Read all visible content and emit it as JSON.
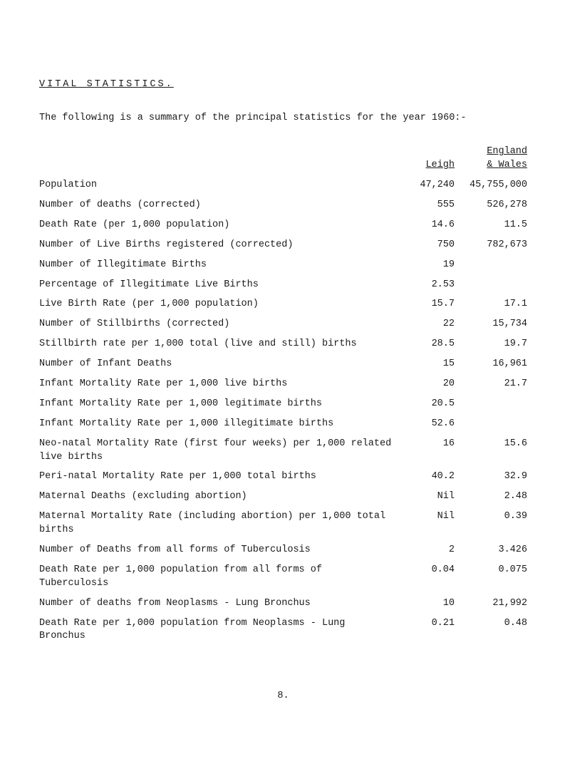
{
  "title": "VITAL STATISTICS.",
  "intro": "The following is a summary of the principal statistics for the year 1960:-",
  "headers": {
    "leigh": "Leigh",
    "england": "England\n& Wales"
  },
  "rows": [
    {
      "label": "Population",
      "leigh": "47,240",
      "ew": "45,755,000"
    },
    {
      "label": "Number of deaths (corrected)",
      "leigh": "555",
      "ew": "526,278"
    },
    {
      "label": "Death Rate (per 1,000 population)",
      "leigh": "14.6",
      "ew": "11.5"
    },
    {
      "label": "Number of Live Births registered (corrected)",
      "leigh": "750",
      "ew": "782,673"
    },
    {
      "label": "Number of Illegitimate Births",
      "leigh": "19",
      "ew": ""
    },
    {
      "label": "Percentage of Illegitimate Live Births",
      "leigh": "2.53",
      "ew": ""
    },
    {
      "label": "Live Birth Rate (per 1,000 population)",
      "leigh": "15.7",
      "ew": "17.1"
    },
    {
      "label": "Number of Stillbirths (corrected)",
      "leigh": "22",
      "ew": "15,734"
    },
    {
      "label": "Stillbirth rate per 1,000 total (live and still) births",
      "leigh": "28.5",
      "ew": "19.7"
    },
    {
      "label": "Number of Infant Deaths",
      "leigh": "15",
      "ew": "16,961"
    },
    {
      "label": "Infant Mortality Rate per 1,000 live births",
      "leigh": "20",
      "ew": "21.7"
    },
    {
      "label": "Infant Mortality Rate per 1,000 legitimate births",
      "leigh": "20.5",
      "ew": ""
    },
    {
      "label": "Infant Mortality Rate per 1,000 illegitimate births",
      "leigh": "52.6",
      "ew": ""
    },
    {
      "label": "Neo-natal Mortality Rate (first four weeks) per 1,000 related live births",
      "leigh": "16",
      "ew": "15.6"
    },
    {
      "label": "Peri-natal Mortality Rate per 1,000 total births",
      "leigh": "40.2",
      "ew": "32.9"
    },
    {
      "label": "Maternal Deaths (excluding abortion)",
      "leigh": "Nil",
      "ew": "2.48"
    },
    {
      "label": "Maternal Mortality Rate (including abortion) per 1,000 total births",
      "leigh": "Nil",
      "ew": "0.39"
    },
    {
      "label": "Number of Deaths from all forms of Tuberculosis",
      "leigh": "2",
      "ew": "3.426"
    },
    {
      "label": "Death Rate per 1,000 population from all forms of Tuberculosis",
      "leigh": "0.04",
      "ew": "0.075"
    },
    {
      "label": "Number of deaths from Neoplasms - Lung Bronchus",
      "leigh": "10",
      "ew": "21,992"
    },
    {
      "label": "Death Rate per 1,000 population from Neoplasms - Lung Bronchus",
      "leigh": "0.21",
      "ew": "0.48"
    }
  ],
  "pageNumber": "8."
}
